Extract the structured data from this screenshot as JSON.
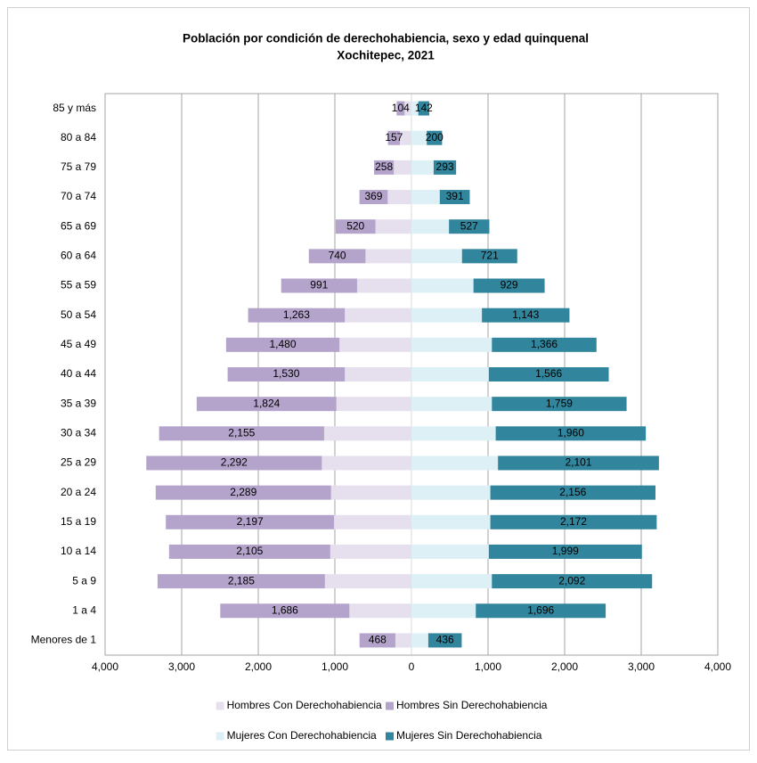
{
  "chart_data": {
    "type": "bar",
    "orientation": "horizontal",
    "stacked": true,
    "title": "Población por condición de derechohabiencia, sexo y edad quinquenal",
    "subtitle": "Xochitepec, 2021",
    "categories": [
      "85 y más",
      "80 a 84",
      "75 a 79",
      "70 a 74",
      "65 a 69",
      "60 a 64",
      "55 a 59",
      "50 a 54",
      "45 a 49",
      "40 a 44",
      "35 a 39",
      "30 a 34",
      "25 a 29",
      "20 a 24",
      "15 a 19",
      "10 a 14",
      "5 a 9",
      "1 a 4",
      "Menores de 1"
    ],
    "series": [
      {
        "name": "Hombres Con Derechohabiencia",
        "color": "#e6e0ee",
        "values": [
          -90,
          -150,
          -230,
          -310,
          -470,
          -600,
          -710,
          -870,
          -940,
          -870,
          -980,
          -1140,
          -1170,
          -1050,
          -1010,
          -1060,
          -1130,
          -810,
          -210
        ]
      },
      {
        "name": "Hombres Sin Derechohabiencia",
        "color": "#b4a4cc",
        "values": [
          -104,
          -157,
          -258,
          -369,
          -520,
          -740,
          -991,
          -1263,
          -1480,
          -1530,
          -1824,
          -2155,
          -2292,
          -2289,
          -2197,
          -2105,
          -2185,
          -1686,
          -468
        ],
        "value_labels": [
          "104",
          "157",
          "258",
          "369",
          "520",
          "740",
          "991",
          "1,263",
          "1,480",
          "1,530",
          "1,824",
          "2,155",
          "2,292",
          "2,289",
          "2,197",
          "2,105",
          "2,185",
          "1,686",
          "468"
        ]
      },
      {
        "name": "Mujeres Con Derechohabiencia",
        "color": "#dcf0f5",
        "values": [
          90,
          200,
          290,
          370,
          490,
          660,
          810,
          920,
          1050,
          1010,
          1050,
          1100,
          1130,
          1030,
          1030,
          1010,
          1050,
          840,
          220
        ]
      },
      {
        "name": "Mujeres Sin Derechohabiencia",
        "color": "#31859c",
        "values": [
          142,
          200,
          293,
          391,
          527,
          721,
          929,
          1143,
          1366,
          1566,
          1759,
          1960,
          2101,
          2156,
          2172,
          1999,
          2092,
          1696,
          436
        ],
        "value_labels": [
          "142",
          "200",
          "293",
          "391",
          "527",
          "721",
          "929",
          "1,143",
          "1,366",
          "1,566",
          "1,759",
          "1,960",
          "2,101",
          "2,156",
          "2,172",
          "1,999",
          "2,092",
          "1,696",
          "436"
        ]
      }
    ],
    "xlim": [
      -4000,
      4000
    ],
    "xticks": [
      {
        "value": -4000,
        "label": "4,000"
      },
      {
        "value": -3000,
        "label": "3,000"
      },
      {
        "value": -2000,
        "label": "2,000"
      },
      {
        "value": -1000,
        "label": "1,000"
      },
      0,
      {
        "value": 1000,
        "label": "1,000"
      },
      {
        "value": 2000,
        "label": "2,000"
      },
      {
        "value": 3000,
        "label": "3,000"
      },
      {
        "value": 4000,
        "label": "4,000"
      }
    ],
    "grid": true
  }
}
